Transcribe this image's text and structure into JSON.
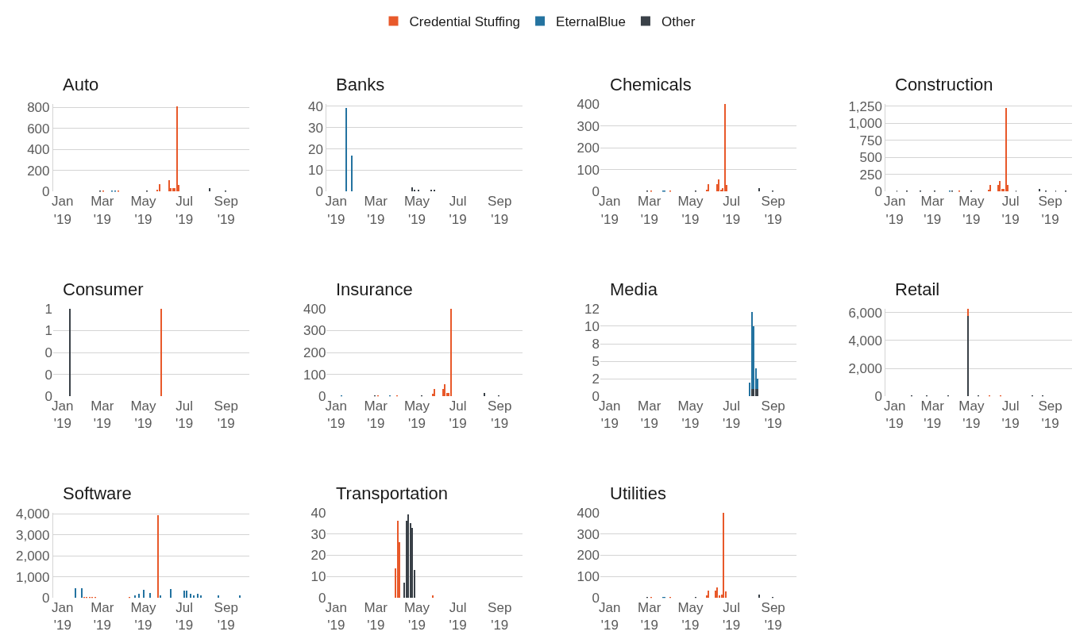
{
  "chart_data": [
    {
      "type": "bar",
      "title": "Auto",
      "stacked": true,
      "grid": "y",
      "legend": "top",
      "xlim": [
        "2018-12-18",
        "2019-10-05"
      ],
      "xticks": [
        {
          "value": "2019-01-01",
          "label": "Jan\n'19"
        },
        {
          "value": "2019-03-01",
          "label": "Mar\n'19"
        },
        {
          "value": "2019-05-01",
          "label": "May\n'19"
        },
        {
          "value": "2019-07-01",
          "label": "Jul\n'19"
        },
        {
          "value": "2019-09-01",
          "label": "Sep\n'19"
        }
      ],
      "ylim": [
        0,
        830
      ],
      "yticks": [
        0,
        200,
        400,
        600,
        800
      ],
      "x": [
        "2019-02-26",
        "2019-03-02",
        "2019-03-15",
        "2019-03-20",
        "2019-03-25",
        "2019-05-06",
        "2019-05-22",
        "2019-05-25",
        "2019-06-08",
        "2019-06-11",
        "2019-06-14",
        "2019-06-17",
        "2019-06-20",
        "2019-06-23",
        "2019-08-08",
        "2019-08-31"
      ],
      "series": [
        {
          "name": "Credential Stuffing",
          "color": "#e8592a",
          "values": [
            null,
            4,
            null,
            null,
            4,
            null,
            20,
            70,
            105,
            30,
            35,
            35,
            810,
            60,
            null,
            null
          ]
        },
        {
          "name": "EternalBlue",
          "color": "#2473a0",
          "values": [
            null,
            null,
            4,
            4,
            null,
            null,
            null,
            null,
            null,
            null,
            null,
            null,
            null,
            null,
            null,
            null
          ]
        },
        {
          "name": "Other",
          "color": "#3a4148",
          "values": [
            4,
            null,
            null,
            null,
            null,
            5,
            null,
            null,
            null,
            null,
            null,
            null,
            null,
            null,
            30,
            4
          ]
        }
      ]
    },
    {
      "type": "bar",
      "title": "Banks",
      "stacked": true,
      "grid": "y",
      "xlim": [
        "2018-12-18",
        "2019-10-05"
      ],
      "xticks": [
        {
          "value": "2019-01-01",
          "label": "Jan\n'19"
        },
        {
          "value": "2019-03-01",
          "label": "Mar\n'19"
        },
        {
          "value": "2019-05-01",
          "label": "May\n'19"
        },
        {
          "value": "2019-07-01",
          "label": "Jul\n'19"
        },
        {
          "value": "2019-09-01",
          "label": "Sep\n'19"
        }
      ],
      "ylim": [
        0,
        41
      ],
      "yticks": [
        0,
        10,
        20,
        30,
        40
      ],
      "x": [
        "2019-01-17",
        "2019-01-25",
        "2019-04-25",
        "2019-04-28",
        "2019-05-04",
        "2019-05-23",
        "2019-05-28"
      ],
      "series": [
        {
          "name": "EternalBlue",
          "color": "#2473a0",
          "values": [
            39,
            17,
            null,
            null,
            null,
            null,
            null
          ]
        },
        {
          "name": "Other",
          "color": "#3a4148",
          "values": [
            null,
            null,
            2,
            1,
            1,
            1,
            1
          ]
        }
      ]
    },
    {
      "type": "bar",
      "title": "Chemicals",
      "stacked": true,
      "grid": "y",
      "xlim": [
        "2018-12-18",
        "2019-10-05"
      ],
      "xticks": [
        {
          "value": "2019-01-01",
          "label": "Jan\n'19"
        },
        {
          "value": "2019-03-01",
          "label": "Mar\n'19"
        },
        {
          "value": "2019-05-01",
          "label": "May\n'19"
        },
        {
          "value": "2019-07-01",
          "label": "Jul\n'19"
        },
        {
          "value": "2019-09-01",
          "label": "Sep\n'19"
        }
      ],
      "ylim": [
        0,
        400
      ],
      "yticks": [
        0,
        100,
        200,
        300,
        400
      ],
      "x": [
        "2019-02-26",
        "2019-03-04",
        "2019-03-21",
        "2019-03-24",
        "2019-04-01",
        "2019-05-08",
        "2019-05-25",
        "2019-05-28",
        "2019-06-09",
        "2019-06-12",
        "2019-06-15",
        "2019-06-18",
        "2019-06-21",
        "2019-06-24",
        "2019-08-11",
        "2019-08-31"
      ],
      "series": [
        {
          "name": "Credential Stuffing",
          "color": "#e8592a",
          "values": [
            null,
            3,
            null,
            null,
            3,
            null,
            10,
            35,
            35,
            55,
            10,
            15,
            400,
            30,
            null,
            null
          ]
        },
        {
          "name": "EternalBlue",
          "color": "#2473a0",
          "values": [
            null,
            null,
            3,
            3,
            null,
            null,
            null,
            null,
            null,
            null,
            null,
            null,
            null,
            null,
            null,
            null
          ]
        },
        {
          "name": "Other",
          "color": "#3a4148",
          "values": [
            3,
            null,
            null,
            null,
            null,
            3,
            null,
            null,
            null,
            null,
            null,
            null,
            null,
            null,
            15,
            3
          ]
        }
      ]
    },
    {
      "type": "bar",
      "title": "Construction",
      "stacked": true,
      "grid": "y",
      "xlim": [
        "2018-12-18",
        "2019-10-05"
      ],
      "xticks": [
        {
          "value": "2019-01-01",
          "label": "Jan\n'19"
        },
        {
          "value": "2019-03-01",
          "label": "Mar\n'19"
        },
        {
          "value": "2019-05-01",
          "label": "May\n'19"
        },
        {
          "value": "2019-07-01",
          "label": "Jul\n'19"
        },
        {
          "value": "2019-09-01",
          "label": "Sep\n'19"
        }
      ],
      "ylim": [
        0,
        1280
      ],
      "yticks": [
        0,
        250,
        500,
        750,
        {
          "value": 1000,
          "label": "1,000"
        },
        {
          "value": 1250,
          "label": "1,250"
        }
      ],
      "x": [
        "2019-01-05",
        "2019-01-20",
        "2019-02-10",
        "2019-03-05",
        "2019-03-28",
        "2019-04-01",
        "2019-04-12",
        "2019-05-01",
        "2019-05-28",
        "2019-05-31",
        "2019-06-12",
        "2019-06-15",
        "2019-06-18",
        "2019-06-21",
        "2019-06-24",
        "2019-06-27",
        "2019-07-10",
        "2019-08-16",
        "2019-08-25",
        "2019-09-10",
        "2019-09-25"
      ],
      "series": [
        {
          "name": "Credential Stuffing",
          "color": "#e8592a",
          "values": [
            null,
            null,
            null,
            null,
            null,
            null,
            10,
            null,
            30,
            100,
            100,
            160,
            40,
            40,
            1220,
            100,
            null,
            null,
            null,
            null,
            null
          ]
        },
        {
          "name": "EternalBlue",
          "color": "#2473a0",
          "values": [
            null,
            null,
            null,
            null,
            10,
            null,
            null,
            null,
            null,
            null,
            null,
            null,
            null,
            null,
            null,
            null,
            null,
            null,
            null,
            null,
            null
          ]
        },
        {
          "name": "Other",
          "color": "#3a4148",
          "values": [
            10,
            10,
            10,
            10,
            null,
            10,
            null,
            10,
            null,
            null,
            null,
            null,
            null,
            null,
            null,
            null,
            10,
            40,
            10,
            10,
            10
          ]
        }
      ]
    },
    {
      "type": "bar",
      "title": "Consumer",
      "stacked": true,
      "grid": "y",
      "xlim": [
        "2018-12-18",
        "2019-10-05"
      ],
      "xticks": [
        {
          "value": "2019-01-01",
          "label": "Jan\n'19"
        },
        {
          "value": "2019-03-01",
          "label": "Mar\n'19"
        },
        {
          "value": "2019-05-01",
          "label": "May\n'19"
        },
        {
          "value": "2019-07-01",
          "label": "Jul\n'19"
        },
        {
          "value": "2019-09-01",
          "label": "Sep\n'19"
        }
      ],
      "ylim": [
        0,
        1
      ],
      "yticks": [
        0,
        {
          "value": 0.25,
          "label": "0"
        },
        {
          "value": 0.5,
          "label": "0"
        },
        {
          "value": 0.75,
          "label": "1"
        },
        1
      ],
      "x": [
        "2019-01-12",
        "2019-05-27"
      ],
      "series": [
        {
          "name": "Credential Stuffing",
          "color": "#e8592a",
          "values": [
            null,
            1
          ]
        },
        {
          "name": "Other",
          "color": "#3a4148",
          "values": [
            1,
            null
          ]
        }
      ]
    },
    {
      "type": "bar",
      "title": "Insurance",
      "stacked": true,
      "grid": "y",
      "xlim": [
        "2018-12-18",
        "2019-10-05"
      ],
      "xticks": [
        {
          "value": "2019-01-01",
          "label": "Jan\n'19"
        },
        {
          "value": "2019-03-01",
          "label": "Mar\n'19"
        },
        {
          "value": "2019-05-01",
          "label": "May\n'19"
        },
        {
          "value": "2019-07-01",
          "label": "Jul\n'19"
        },
        {
          "value": "2019-09-01",
          "label": "Sep\n'19"
        }
      ],
      "ylim": [
        0,
        400
      ],
      "yticks": [
        0,
        100,
        200,
        300,
        400
      ],
      "x": [
        "2019-01-10",
        "2019-02-28",
        "2019-03-05",
        "2019-03-22",
        "2019-04-02",
        "2019-05-09",
        "2019-05-25",
        "2019-05-28",
        "2019-06-09",
        "2019-06-12",
        "2019-06-15",
        "2019-06-18",
        "2019-06-21",
        "2019-08-10",
        "2019-08-31"
      ],
      "series": [
        {
          "name": "Credential Stuffing",
          "color": "#e8592a",
          "values": [
            null,
            null,
            3,
            null,
            3,
            null,
            10,
            35,
            35,
            55,
            15,
            15,
            400,
            null,
            null
          ]
        },
        {
          "name": "EternalBlue",
          "color": "#2473a0",
          "values": [
            3,
            null,
            null,
            3,
            null,
            null,
            null,
            null,
            null,
            null,
            null,
            null,
            null,
            null,
            null
          ]
        },
        {
          "name": "Other",
          "color": "#3a4148",
          "values": [
            null,
            3,
            null,
            null,
            null,
            3,
            null,
            null,
            null,
            null,
            null,
            null,
            null,
            15,
            3
          ]
        }
      ]
    },
    {
      "type": "bar",
      "title": "Media",
      "stacked": true,
      "grid": "y",
      "xlim": [
        "2018-12-18",
        "2019-10-05"
      ],
      "xticks": [
        {
          "value": "2019-01-01",
          "label": "Jan\n'19"
        },
        {
          "value": "2019-03-01",
          "label": "Mar\n'19"
        },
        {
          "value": "2019-05-01",
          "label": "May\n'19"
        },
        {
          "value": "2019-07-01",
          "label": "Jul\n'19"
        },
        {
          "value": "2019-09-01",
          "label": "Sep\n'19"
        }
      ],
      "ylim": [
        0,
        12.5
      ],
      "yticks": [
        0,
        {
          "value": 2.5,
          "label": "2"
        },
        5,
        {
          "value": 7.5,
          "label": "8"
        },
        10,
        {
          "value": 12.5,
          "label": "12"
        }
      ],
      "x": [
        "2019-07-28",
        "2019-07-31",
        "2019-08-03",
        "2019-08-06",
        "2019-08-09"
      ],
      "series": [
        {
          "name": "Other",
          "color": "#3a4148",
          "values": [
            null,
            1,
            1,
            1,
            1
          ]
        },
        {
          "name": "EternalBlue",
          "color": "#2473a0",
          "values": [
            2,
            11,
            9,
            3,
            1.5
          ]
        }
      ]
    },
    {
      "type": "bar",
      "title": "Retail",
      "stacked": true,
      "grid": "y",
      "xlim": [
        "2018-12-18",
        "2019-10-05"
      ],
      "xticks": [
        {
          "value": "2019-01-01",
          "label": "Jan\n'19"
        },
        {
          "value": "2019-03-01",
          "label": "Mar\n'19"
        },
        {
          "value": "2019-05-01",
          "label": "May\n'19"
        },
        {
          "value": "2019-07-01",
          "label": "Jul\n'19"
        },
        {
          "value": "2019-09-01",
          "label": "Sep\n'19"
        }
      ],
      "ylim": [
        0,
        6270
      ],
      "yticks": [
        0,
        {
          "value": 2000,
          "label": "2,000"
        },
        {
          "value": 4000,
          "label": "4,000"
        },
        {
          "value": 6000,
          "label": "6,000"
        }
      ],
      "x": [
        "2019-01-28",
        "2019-02-20",
        "2019-03-26",
        "2019-04-26",
        "2019-05-12",
        "2019-05-30",
        "2019-06-16",
        "2019-08-04",
        "2019-08-20"
      ],
      "series": [
        {
          "name": "Other",
          "color": "#3a4148",
          "values": [
            30,
            30,
            60,
            5730,
            30,
            null,
            null,
            30,
            30
          ]
        },
        {
          "name": "Credential Stuffing",
          "color": "#e8592a",
          "values": [
            null,
            null,
            null,
            540,
            null,
            50,
            80,
            null,
            null
          ]
        }
      ]
    },
    {
      "type": "bar",
      "title": "Software",
      "stacked": true,
      "grid": "y",
      "xlim": [
        "2018-12-18",
        "2019-10-05"
      ],
      "xticks": [
        {
          "value": "2019-01-01",
          "label": "Jan\n'19"
        },
        {
          "value": "2019-03-01",
          "label": "Mar\n'19"
        },
        {
          "value": "2019-05-01",
          "label": "May\n'19"
        },
        {
          "value": "2019-07-01",
          "label": "Jul\n'19"
        },
        {
          "value": "2019-09-01",
          "label": "Sep\n'19"
        }
      ],
      "ylim": [
        0,
        4050
      ],
      "yticks": [
        0,
        {
          "value": 1000,
          "label": "1,000"
        },
        {
          "value": 2000,
          "label": "2,000"
        },
        {
          "value": 3000,
          "label": "3,000"
        },
        {
          "value": 4000,
          "label": "4,000"
        }
      ],
      "x": [
        "2019-01-20",
        "2019-01-30",
        "2019-02-02",
        "2019-02-06",
        "2019-02-10",
        "2019-02-14",
        "2019-02-18",
        "2019-04-10",
        "2019-04-18",
        "2019-04-25",
        "2019-05-02",
        "2019-05-11",
        "2019-05-23",
        "2019-05-26",
        "2019-06-11",
        "2019-07-01",
        "2019-07-04",
        "2019-07-10",
        "2019-07-15",
        "2019-07-21",
        "2019-07-25",
        "2019-08-21",
        "2019-09-21"
      ],
      "series": [
        {
          "name": "Credential Stuffing",
          "color": "#e8592a",
          "values": [
            null,
            null,
            30,
            30,
            30,
            30,
            30,
            30,
            null,
            null,
            null,
            null,
            3930,
            null,
            null,
            null,
            null,
            null,
            null,
            null,
            null,
            null,
            null
          ]
        },
        {
          "name": "EternalBlue",
          "color": "#2473a0",
          "values": [
            450,
            460,
            null,
            null,
            null,
            null,
            null,
            null,
            100,
            200,
            390,
            220,
            null,
            100,
            420,
            330,
            330,
            200,
            100,
            200,
            120,
            130,
            120
          ]
        }
      ]
    },
    {
      "type": "bar",
      "title": "Transportation",
      "stacked": true,
      "grid": "y",
      "xlim": [
        "2018-12-18",
        "2019-10-05"
      ],
      "xticks": [
        {
          "value": "2019-01-01",
          "label": "Jan\n'19"
        },
        {
          "value": "2019-03-01",
          "label": "Mar\n'19"
        },
        {
          "value": "2019-05-01",
          "label": "May\n'19"
        },
        {
          "value": "2019-07-01",
          "label": "Jul\n'19"
        },
        {
          "value": "2019-09-01",
          "label": "Sep\n'19"
        }
      ],
      "ylim": [
        0,
        40
      ],
      "yticks": [
        0,
        10,
        20,
        30,
        40
      ],
      "x": [
        "2019-03-31",
        "2019-04-03",
        "2019-04-06",
        "2019-04-13",
        "2019-04-16",
        "2019-04-19",
        "2019-04-22",
        "2019-04-25",
        "2019-04-28",
        "2019-05-25"
      ],
      "series": [
        {
          "name": "Credential Stuffing",
          "color": "#e8592a",
          "values": [
            14,
            36,
            26,
            null,
            null,
            null,
            null,
            null,
            null,
            1
          ]
        },
        {
          "name": "Other",
          "color": "#3a4148",
          "values": [
            null,
            null,
            null,
            7,
            36,
            39,
            35,
            33,
            13,
            null
          ]
        }
      ]
    },
    {
      "type": "bar",
      "title": "Utilities",
      "stacked": true,
      "grid": "y",
      "xlim": [
        "2018-12-18",
        "2019-10-05"
      ],
      "xticks": [
        {
          "value": "2019-01-01",
          "label": "Jan\n'19"
        },
        {
          "value": "2019-03-01",
          "label": "Mar\n'19"
        },
        {
          "value": "2019-05-01",
          "label": "May\n'19"
        },
        {
          "value": "2019-07-01",
          "label": "Jul\n'19"
        },
        {
          "value": "2019-09-01",
          "label": "Sep\n'19"
        }
      ],
      "ylim": [
        0,
        400
      ],
      "yticks": [
        0,
        100,
        200,
        300,
        400
      ],
      "x": [
        "2019-02-26",
        "2019-03-04",
        "2019-03-21",
        "2019-03-24",
        "2019-04-01",
        "2019-05-08",
        "2019-05-25",
        "2019-05-28",
        "2019-06-07",
        "2019-06-10",
        "2019-06-13",
        "2019-06-16",
        "2019-06-19",
        "2019-06-22",
        "2019-08-11",
        "2019-08-31"
      ],
      "series": [
        {
          "name": "Credential Stuffing",
          "color": "#e8592a",
          "values": [
            null,
            3,
            null,
            null,
            3,
            null,
            10,
            35,
            35,
            50,
            10,
            15,
            400,
            30,
            null,
            null
          ]
        },
        {
          "name": "EternalBlue",
          "color": "#2473a0",
          "values": [
            null,
            null,
            3,
            3,
            null,
            null,
            null,
            null,
            null,
            null,
            null,
            null,
            null,
            null,
            null,
            null
          ]
        },
        {
          "name": "Other",
          "color": "#3a4148",
          "values": [
            3,
            null,
            null,
            null,
            null,
            3,
            null,
            null,
            null,
            null,
            null,
            null,
            null,
            null,
            15,
            3
          ]
        }
      ]
    }
  ]
}
